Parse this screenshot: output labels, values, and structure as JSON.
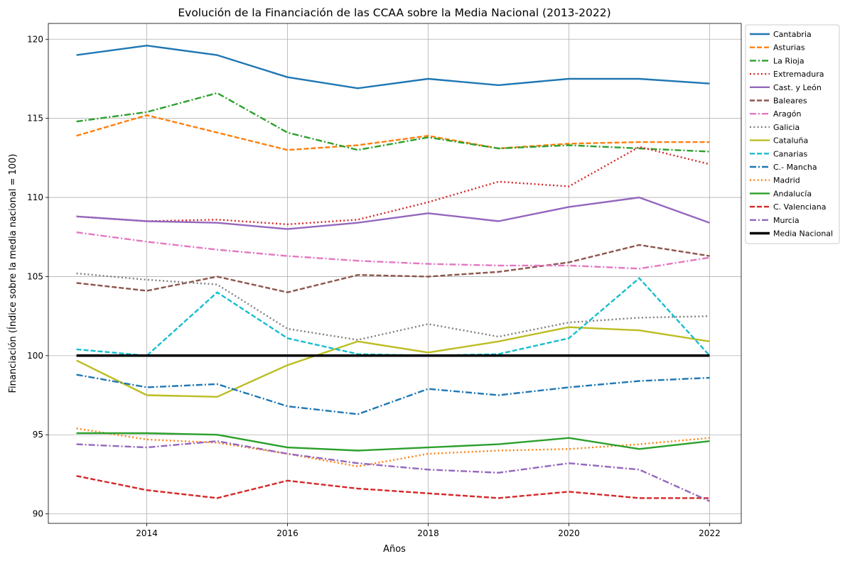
{
  "chart_data": {
    "type": "line",
    "title": "Evolución de la Financiación de las CCAA sobre la Media Nacional (2013-2022)",
    "xlabel": "Años",
    "ylabel": "Financiación (Índice sobre la media nacional = 100)",
    "xlim": [
      2012.6,
      2022.45
    ],
    "ylim": [
      89.4,
      121.0
    ],
    "xticks": [
      2014,
      2016,
      2018,
      2020,
      2022
    ],
    "yticks": [
      90,
      95,
      100,
      105,
      110,
      115,
      120
    ],
    "grid": true,
    "legend_position": "upper right, outside plot",
    "x": [
      2013,
      2014,
      2015,
      2016,
      2017,
      2018,
      2019,
      2020,
      2021,
      2022
    ],
    "series": [
      {
        "name": "Cantabria",
        "color": "#1f77b4",
        "style": "solid",
        "values": [
          119.0,
          119.6,
          119.0,
          117.6,
          116.9,
          117.5,
          117.1,
          117.5,
          117.5,
          117.2
        ]
      },
      {
        "name": "Asturias",
        "color": "#ff7f0e",
        "style": "dashed",
        "values": [
          113.9,
          115.2,
          114.1,
          113.0,
          113.3,
          113.9,
          113.1,
          113.4,
          113.5,
          113.5
        ]
      },
      {
        "name": "La Rioja",
        "color": "#2ca02c",
        "style": "dashdot",
        "values": [
          114.8,
          115.4,
          116.6,
          114.1,
          113.0,
          113.8,
          113.1,
          113.3,
          113.1,
          112.9
        ]
      },
      {
        "name": "Extremadura",
        "color": "#d62728",
        "style": "dotted",
        "values": [
          108.8,
          108.5,
          108.6,
          108.3,
          108.6,
          109.7,
          111.0,
          110.7,
          113.2,
          112.1
        ]
      },
      {
        "name": "Cast. y León",
        "color": "#9467bd",
        "style": "solid",
        "values": [
          108.8,
          108.5,
          108.4,
          108.0,
          108.4,
          109.0,
          108.5,
          109.4,
          110.0,
          108.4
        ]
      },
      {
        "name": "Baleares",
        "color": "#8c564b",
        "style": "dashed",
        "values": [
          104.6,
          104.1,
          105.0,
          104.0,
          105.1,
          105.0,
          105.3,
          105.9,
          107.0,
          106.3
        ]
      },
      {
        "name": "Aragón",
        "color": "#e377c2",
        "style": "dashdot",
        "values": [
          107.8,
          107.2,
          106.7,
          106.3,
          106.0,
          105.8,
          105.7,
          105.7,
          105.5,
          106.2
        ]
      },
      {
        "name": "Galicia",
        "color": "#7f7f7f",
        "style": "dotted",
        "values": [
          105.2,
          104.8,
          104.5,
          101.7,
          101.0,
          102.0,
          101.2,
          102.1,
          102.4,
          102.5
        ]
      },
      {
        "name": "Cataluña",
        "color": "#bcbd22",
        "style": "solid",
        "values": [
          99.7,
          97.5,
          97.4,
          99.4,
          100.9,
          100.2,
          100.9,
          101.8,
          101.6,
          100.9
        ]
      },
      {
        "name": "Canarias",
        "color": "#17becf",
        "style": "dashed",
        "values": [
          100.4,
          100.0,
          104.0,
          101.1,
          100.1,
          100.0,
          100.1,
          101.1,
          104.9,
          100.0
        ]
      },
      {
        "name": "C.- Mancha",
        "color": "#1f77b4",
        "style": "dashdot",
        "values": [
          98.8,
          98.0,
          98.2,
          96.8,
          96.3,
          97.9,
          97.5,
          98.0,
          98.4,
          98.6
        ]
      },
      {
        "name": "Madrid",
        "color": "#ff7f0e",
        "style": "dotted",
        "values": [
          95.4,
          94.7,
          94.5,
          93.8,
          93.0,
          93.8,
          94.0,
          94.1,
          94.4,
          94.8
        ]
      },
      {
        "name": "Andalucía",
        "color": "#2ca02c",
        "style": "solid",
        "values": [
          95.1,
          95.1,
          95.0,
          94.2,
          94.0,
          94.2,
          94.4,
          94.8,
          94.1,
          94.6
        ]
      },
      {
        "name": "C. Valenciana",
        "color": "#d62728",
        "style": "dashed",
        "values": [
          92.4,
          91.5,
          91.0,
          92.1,
          91.6,
          91.3,
          91.0,
          91.4,
          91.0,
          91.0
        ]
      },
      {
        "name": "Murcia",
        "color": "#9467bd",
        "style": "dashdot",
        "values": [
          94.4,
          94.2,
          94.6,
          93.8,
          93.2,
          92.8,
          92.6,
          93.2,
          92.8,
          90.8
        ]
      },
      {
        "name": "Media Nacional",
        "color": "#000000",
        "style": "solid",
        "thick": true,
        "values": [
          100,
          100,
          100,
          100,
          100,
          100,
          100,
          100,
          100,
          100
        ]
      }
    ]
  }
}
